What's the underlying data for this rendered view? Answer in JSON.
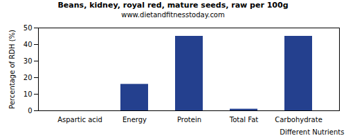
{
  "chart_data": {
    "type": "bar",
    "title": "Beans, kidney, royal red, mature seeds, raw per 100g",
    "subtitle": "www.dietandfitnesstoday.com",
    "x_label": "Different Nutrients",
    "y_label": "Percentage of RDH (%)",
    "categories": [
      "Aspartic acid",
      "Energy",
      "Protein",
      "Total Fat",
      "Carbohydrate"
    ],
    "values": [
      0,
      16,
      45,
      1,
      45
    ],
    "color": "#24408e",
    "ylim": [
      0,
      50
    ],
    "yticks": [
      0,
      10,
      20,
      30,
      40,
      50
    ],
    "grid": false
  }
}
